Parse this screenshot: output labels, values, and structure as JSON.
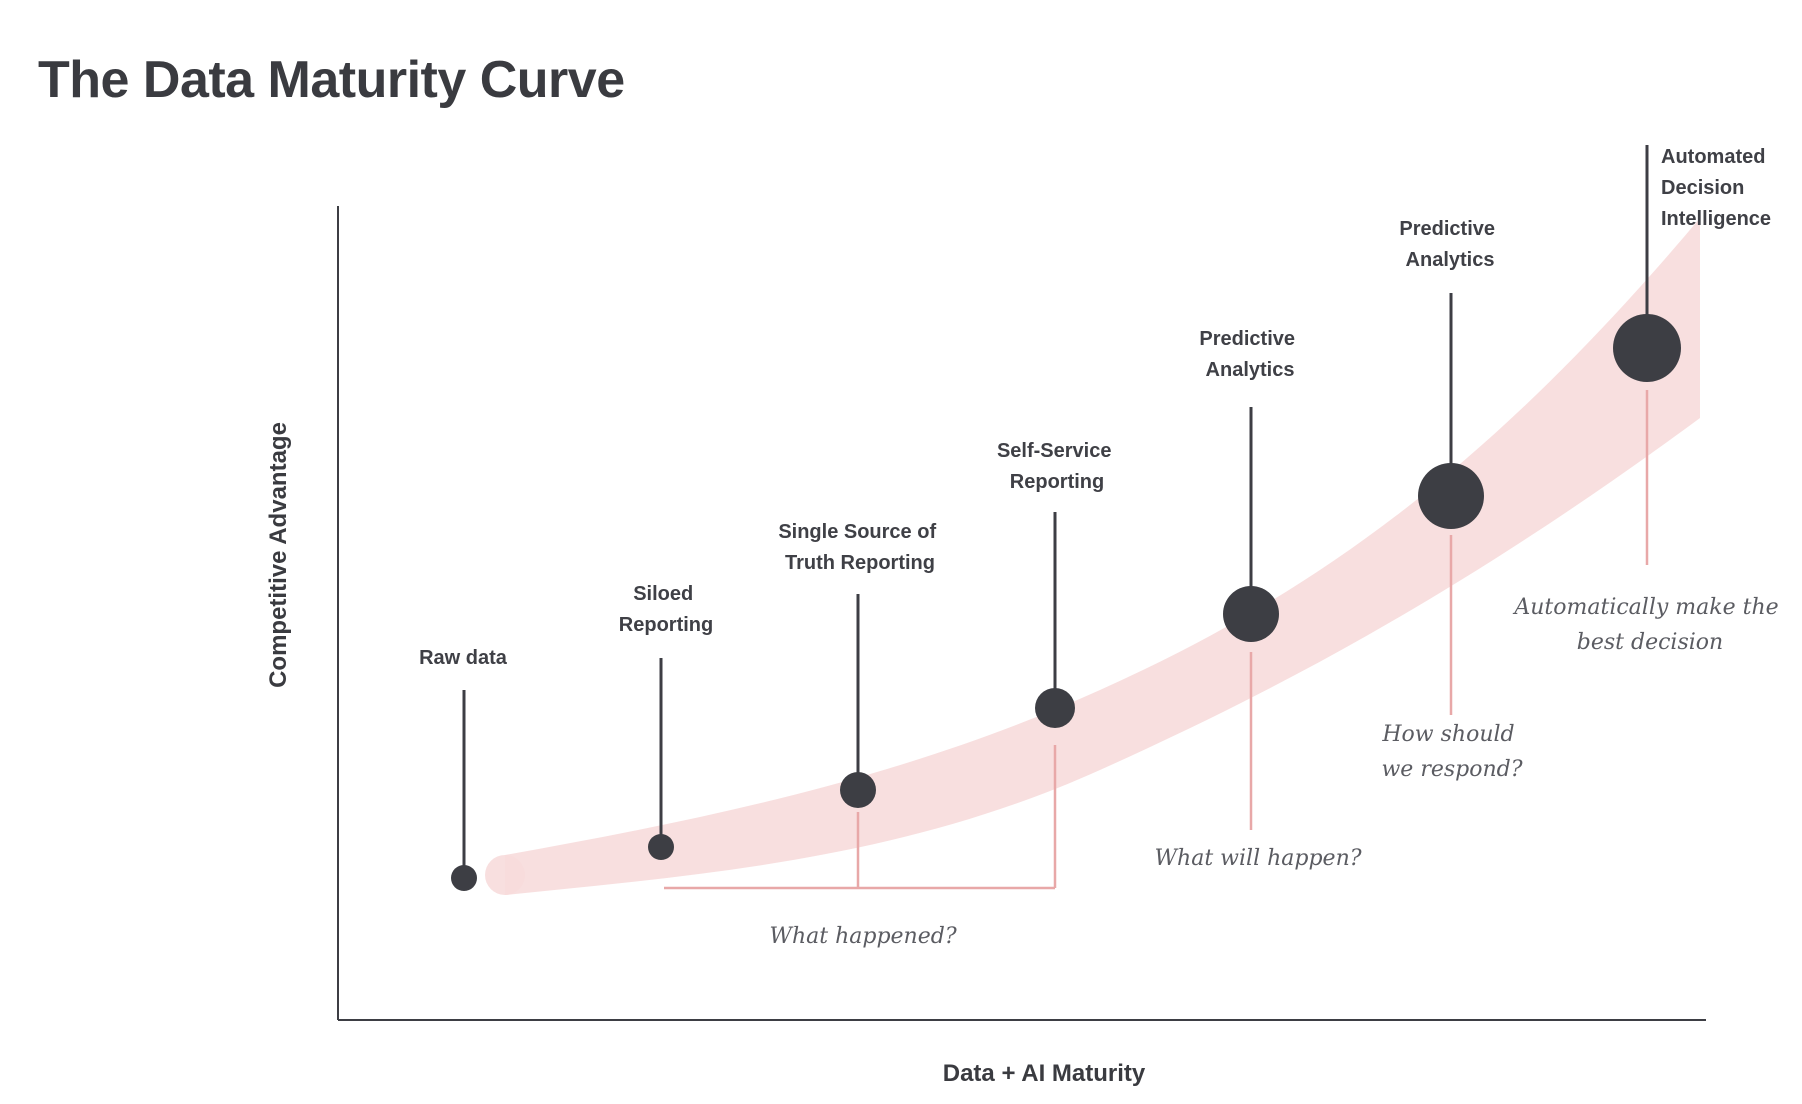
{
  "title": "The Data Maturity Curve",
  "axes": {
    "x_label": "Data + AI Maturity",
    "y_label": "Competitive Advantage"
  },
  "stages": [
    {
      "id": "raw-data",
      "lines": [
        "Raw data"
      ]
    },
    {
      "id": "siloed-reporting",
      "lines": [
        "Siloed",
        "Reporting"
      ]
    },
    {
      "id": "single-source-of-truth",
      "lines": [
        "Single Source of",
        "Truth Reporting"
      ]
    },
    {
      "id": "self-service-reporting",
      "lines": [
        "Self-Service",
        "Reporting"
      ]
    },
    {
      "id": "predictive-analytics-1",
      "lines": [
        "Predictive",
        "Analytics"
      ]
    },
    {
      "id": "predictive-analytics-2",
      "lines": [
        "Predictive",
        "Analytics"
      ]
    },
    {
      "id": "automated-decision-intelligence",
      "lines": [
        "Automated",
        "Decision",
        "Intelligence"
      ]
    }
  ],
  "questions": [
    {
      "id": "what-happened",
      "lines": [
        "What happened?"
      ]
    },
    {
      "id": "what-will-happen",
      "lines": [
        "What will happen?"
      ]
    },
    {
      "id": "how-should-we-respond",
      "lines": [
        "How should",
        "we respond?"
      ]
    },
    {
      "id": "automatically-make-best-decision",
      "lines": [
        "Automatically make the",
        "best decision"
      ]
    }
  ],
  "colors": {
    "band": "#f7dcdc",
    "dot": "#3d3e44",
    "stem_dark": "#3d3e44",
    "stem_pink": "#e8a8a8",
    "axis": "#3d3e44"
  }
}
